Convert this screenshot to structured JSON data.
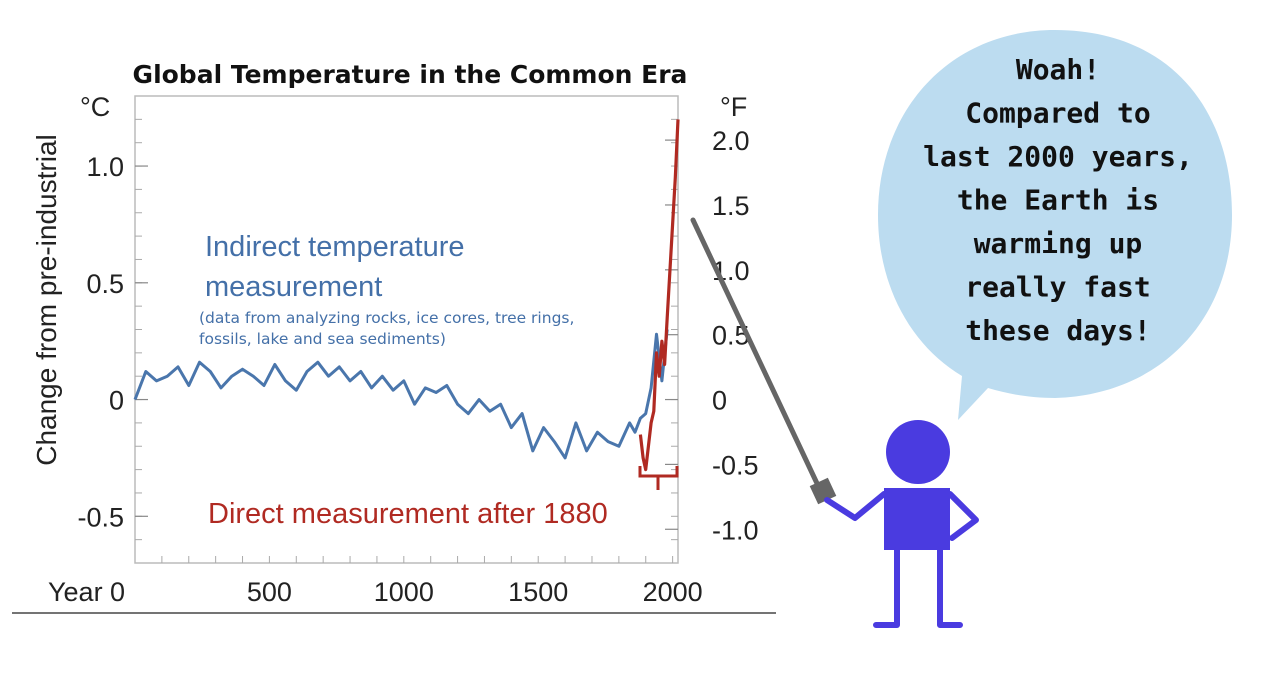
{
  "chart_data": {
    "type": "line",
    "title": "Global Temperature in the Common Era",
    "ylabel": "Change from pre-industrial",
    "y_unit_left": "°C",
    "y_unit_right": "°F",
    "xlim": [
      0,
      2020
    ],
    "ylim": [
      -0.7,
      1.3
    ],
    "x_ticks": [
      {
        "value": 0,
        "label": "Year 0"
      },
      {
        "value": 500,
        "label": "500"
      },
      {
        "value": 1000,
        "label": "1000"
      },
      {
        "value": 1500,
        "label": "1500"
      },
      {
        "value": 2000,
        "label": "2000"
      }
    ],
    "y_ticks_left": [
      {
        "value": -0.5,
        "label": "-0.5"
      },
      {
        "value": 0,
        "label": "0"
      },
      {
        "value": 0.5,
        "label": "0.5"
      },
      {
        "value": 1.0,
        "label": "1.0"
      }
    ],
    "y_ticks_right": [
      {
        "value": -1.0,
        "label": "-1.0"
      },
      {
        "value": -0.5,
        "label": "-0.5"
      },
      {
        "value": 0,
        "label": "0"
      },
      {
        "value": 0.5,
        "label": "0.5"
      },
      {
        "value": 1.0,
        "label": "1.0"
      },
      {
        "value": 1.5,
        "label": "1.5"
      },
      {
        "value": 2.0,
        "label": "2.0"
      }
    ],
    "grid": false,
    "series": [
      {
        "color": "#4a76ac",
        "x": [
          0,
          40,
          80,
          120,
          160,
          200,
          240,
          280,
          320,
          360,
          400,
          440,
          480,
          520,
          560,
          600,
          640,
          680,
          720,
          760,
          800,
          840,
          880,
          920,
          960,
          1000,
          1040,
          1080,
          1120,
          1160,
          1200,
          1240,
          1280,
          1320,
          1360,
          1400,
          1440,
          1480,
          1520,
          1560,
          1600,
          1640,
          1680,
          1720,
          1760,
          1800,
          1840,
          1860,
          1880,
          1900,
          1920,
          1940,
          1960,
          1980
        ],
        "y": [
          0.0,
          0.12,
          0.08,
          0.1,
          0.14,
          0.06,
          0.16,
          0.12,
          0.05,
          0.1,
          0.13,
          0.1,
          0.06,
          0.15,
          0.08,
          0.04,
          0.12,
          0.16,
          0.1,
          0.14,
          0.08,
          0.12,
          0.05,
          0.1,
          0.04,
          0.08,
          -0.02,
          0.05,
          0.03,
          0.06,
          -0.02,
          -0.06,
          0.0,
          -0.05,
          -0.02,
          -0.12,
          -0.06,
          -0.22,
          -0.12,
          -0.18,
          -0.25,
          -0.1,
          -0.22,
          -0.14,
          -0.18,
          -0.2,
          -0.1,
          -0.14,
          -0.08,
          -0.06,
          0.05,
          0.28,
          0.08,
          0.3
        ]
      },
      {
        "color": "#b02a22",
        "x": [
          1880,
          1890,
          1900,
          1910,
          1920,
          1930,
          1940,
          1950,
          1960,
          1970,
          1980,
          1990,
          2000,
          2010,
          2020
        ],
        "y": [
          -0.15,
          -0.25,
          -0.3,
          -0.2,
          -0.1,
          -0.05,
          0.2,
          0.1,
          0.25,
          0.15,
          0.35,
          0.55,
          0.75,
          0.95,
          1.2
        ]
      }
    ],
    "annotations": {
      "indirect_line1": "Indirect temperature",
      "indirect_line2": "measurement",
      "indirect_note1": "(data from analyzing rocks, ice cores, tree rings,",
      "indirect_note2": "fossils, lake and sea sediments)",
      "direct": "Direct measurement after 1880"
    }
  },
  "speech_bubble": {
    "lines": [
      "Woah!",
      "Compared to",
      "last 2000 years,",
      "the Earth is",
      "warming up",
      "really fast",
      "these days!"
    ],
    "color": "#bcdcf0"
  },
  "character": {
    "color": "#4a3be0",
    "pointer_color": "#666666"
  }
}
